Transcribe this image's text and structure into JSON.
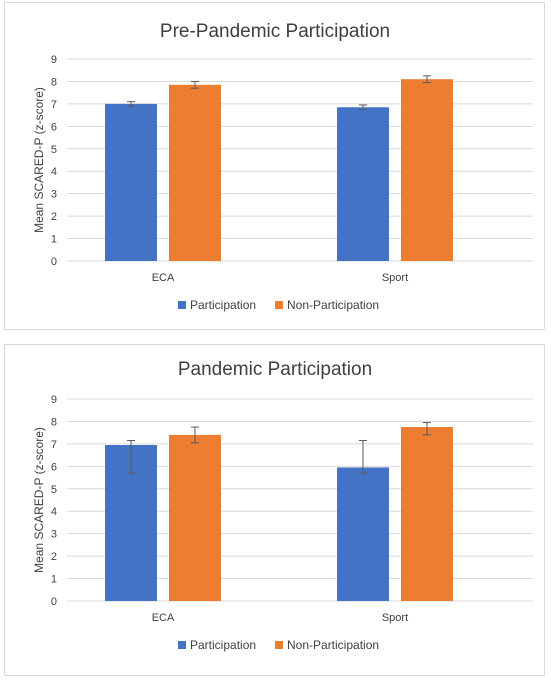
{
  "colors": {
    "participation": "#4472C4",
    "non_participation": "#ED7D31",
    "grid": "#d9d9d9",
    "text": "#404040"
  },
  "chart_data": [
    {
      "type": "bar",
      "title": "Pre-Pandemic Participation",
      "ylabel": "Mean SCARED-P (z-score)",
      "xlabel": "",
      "categories": [
        "ECA",
        "Sport"
      ],
      "ylim": [
        0,
        9
      ],
      "yticks": [
        "0",
        "1",
        "2",
        "3",
        "4",
        "5",
        "6",
        "7",
        "8",
        "9"
      ],
      "grid": true,
      "legend_position": "bottom",
      "series": [
        {
          "name": "Participation",
          "values": [
            7.0,
            6.85
          ],
          "err_low": [
            6.9,
            6.75
          ],
          "err_high": [
            7.1,
            6.95
          ]
        },
        {
          "name": "Non-Participation",
          "values": [
            7.85,
            8.1
          ],
          "err_low": [
            7.7,
            7.95
          ],
          "err_high": [
            8.0,
            8.25
          ]
        }
      ]
    },
    {
      "type": "bar",
      "title": "Pandemic Participation",
      "ylabel": "Mean SCARED-P (z-score)",
      "xlabel": "",
      "categories": [
        "ECA",
        "Sport"
      ],
      "ylim": [
        0,
        9
      ],
      "yticks": [
        "0",
        "1",
        "2",
        "3",
        "4",
        "5",
        "6",
        "7",
        "8",
        "9"
      ],
      "grid": true,
      "legend_position": "bottom",
      "series": [
        {
          "name": "Participation",
          "values": [
            6.95,
            5.95
          ],
          "err_low": [
            5.7,
            5.7
          ],
          "err_high": [
            7.15,
            7.15
          ]
        },
        {
          "name": "Non-Participation",
          "values": [
            7.4,
            7.75
          ],
          "err_low": [
            7.05,
            7.4
          ],
          "err_high": [
            7.75,
            7.95
          ]
        }
      ]
    }
  ]
}
